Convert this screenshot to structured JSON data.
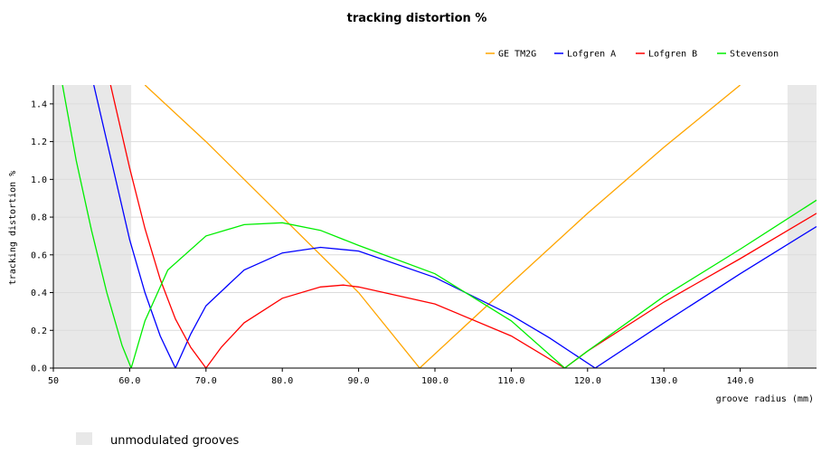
{
  "chart_data": {
    "type": "line",
    "title": "tracking distortion %",
    "xlabel": "groove radius (mm)",
    "ylabel": "tracking distortion %",
    "xlim": [
      50,
      150
    ],
    "ylim": [
      0,
      1.5
    ],
    "x_ticks": [
      50,
      60,
      70,
      80,
      90,
      100,
      110,
      120,
      130,
      140
    ],
    "x_tick_labels": [
      "50",
      "60.0",
      "70.0",
      "80.0",
      "90.0",
      "100.0",
      "110.0",
      "120.0",
      "130.0",
      "140.0"
    ],
    "y_ticks": [
      0,
      0.2,
      0.4,
      0.6,
      0.8,
      1.0,
      1.2,
      1.4
    ],
    "y_tick_labels": [
      "0.0",
      "0.2",
      "0.4",
      "0.6",
      "0.8",
      "1.0",
      "1.2",
      "1.4"
    ],
    "grid": true,
    "legend_position": "top-right",
    "series": [
      {
        "name": "GE TM2G",
        "color": "#ffa500",
        "points": [
          [
            62,
            1.5
          ],
          [
            70,
            1.2
          ],
          [
            80,
            0.8
          ],
          [
            90,
            0.4
          ],
          [
            98,
            0.0
          ],
          [
            110,
            0.45
          ],
          [
            120,
            0.82
          ],
          [
            130,
            1.17
          ],
          [
            140,
            1.5
          ]
        ]
      },
      {
        "name": "Lofgren A",
        "color": "#0000ff",
        "points": [
          [
            55.3,
            1.5
          ],
          [
            58,
            1.03
          ],
          [
            60,
            0.68
          ],
          [
            62,
            0.4
          ],
          [
            64,
            0.17
          ],
          [
            66,
            0.0
          ],
          [
            68,
            0.18
          ],
          [
            70,
            0.33
          ],
          [
            75,
            0.52
          ],
          [
            80,
            0.61
          ],
          [
            85,
            0.64
          ],
          [
            90,
            0.62
          ],
          [
            100,
            0.48
          ],
          [
            110,
            0.28
          ],
          [
            115,
            0.16
          ],
          [
            121,
            0.0
          ],
          [
            130,
            0.24
          ],
          [
            140,
            0.5
          ],
          [
            150,
            0.75
          ]
        ]
      },
      {
        "name": "Lofgren B",
        "color": "#ff0000",
        "points": [
          [
            57.5,
            1.5
          ],
          [
            60,
            1.06
          ],
          [
            62,
            0.74
          ],
          [
            64,
            0.47
          ],
          [
            66,
            0.26
          ],
          [
            68,
            0.11
          ],
          [
            70,
            0.0
          ],
          [
            72,
            0.11
          ],
          [
            75,
            0.24
          ],
          [
            80,
            0.37
          ],
          [
            85,
            0.43
          ],
          [
            88,
            0.44
          ],
          [
            90,
            0.43
          ],
          [
            100,
            0.34
          ],
          [
            110,
            0.17
          ],
          [
            117,
            0.0
          ],
          [
            120,
            0.09
          ],
          [
            130,
            0.35
          ],
          [
            140,
            0.58
          ],
          [
            150,
            0.82
          ]
        ]
      },
      {
        "name": "Stevenson",
        "color": "#00ee00",
        "points": [
          [
            51.2,
            1.5
          ],
          [
            53,
            1.1
          ],
          [
            55,
            0.73
          ],
          [
            57,
            0.4
          ],
          [
            59,
            0.12
          ],
          [
            60.2,
            0.0
          ],
          [
            62,
            0.25
          ],
          [
            65,
            0.52
          ],
          [
            70,
            0.7
          ],
          [
            75,
            0.76
          ],
          [
            80,
            0.77
          ],
          [
            85,
            0.73
          ],
          [
            90,
            0.65
          ],
          [
            100,
            0.5
          ],
          [
            110,
            0.25
          ],
          [
            117,
            0.0
          ],
          [
            120,
            0.09
          ],
          [
            130,
            0.38
          ],
          [
            140,
            0.63
          ],
          [
            150,
            0.89
          ]
        ]
      }
    ],
    "shaded_regions": [
      [
        50,
        60.2
      ],
      [
        146.2,
        150
      ]
    ],
    "shaded_region_label": "unmodulated grooves",
    "shaded_color": "#e8e8e8"
  }
}
